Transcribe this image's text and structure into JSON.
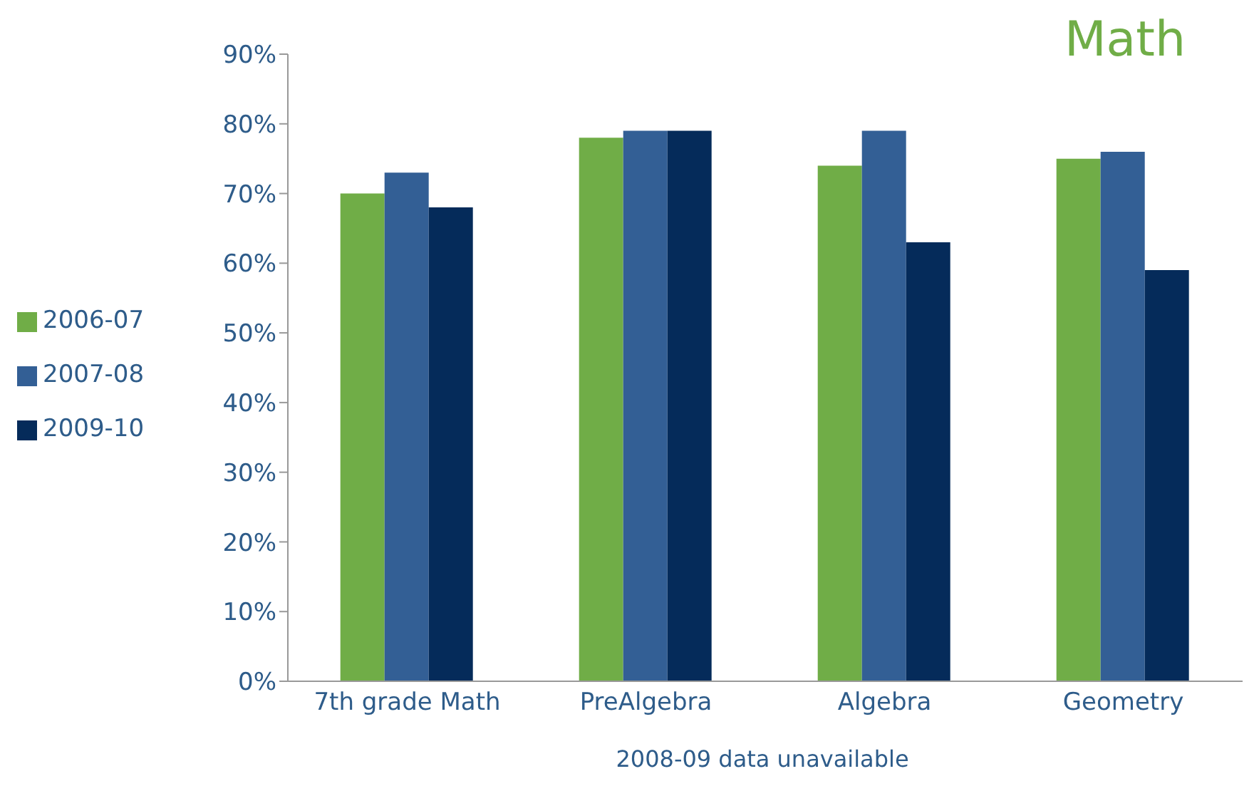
{
  "chart_data": {
    "type": "bar",
    "title": "Math",
    "categories": [
      "7th grade Math",
      "PreAlgebra",
      "Algebra",
      "Geometry"
    ],
    "series": [
      {
        "name": "2006-07",
        "color": "#70ad47",
        "values": [
          70,
          78,
          74,
          75
        ]
      },
      {
        "name": "2007-08",
        "color": "#335f95",
        "values": [
          73,
          79,
          79,
          76
        ]
      },
      {
        "name": "2009-10",
        "color": "#052b5a",
        "values": [
          68,
          79,
          63,
          59
        ]
      }
    ],
    "ylim": [
      0,
      90
    ],
    "yticks": [
      {
        "value": 0,
        "label": "0%"
      },
      {
        "value": 10,
        "label": "10%"
      },
      {
        "value": 20,
        "label": "20%"
      },
      {
        "value": 30,
        "label": "30%"
      },
      {
        "value": 40,
        "label": "40%"
      },
      {
        "value": 50,
        "label": "50%"
      },
      {
        "value": 60,
        "label": "60%"
      },
      {
        "value": 70,
        "label": "70%"
      },
      {
        "value": 80,
        "label": "80%"
      },
      {
        "value": 90,
        "label": "90%"
      }
    ],
    "annotations": [
      "2008-09 data unavailable"
    ],
    "legend": "left",
    "grid": false
  }
}
